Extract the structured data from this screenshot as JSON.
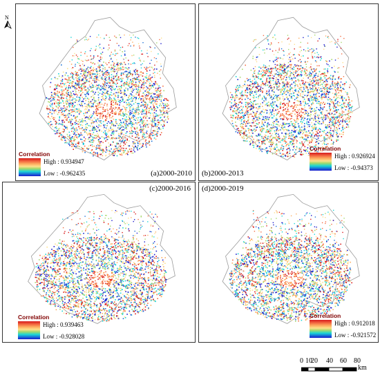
{
  "north_label": "N",
  "panels": [
    {
      "title": "(a)2000-2010",
      "legend_title": "Correlation",
      "high": "High : 0.934947",
      "low": "Low : -0.962435"
    },
    {
      "title": "(b)2000-2013",
      "legend_title": "Correlation",
      "high": "High : 0.926924",
      "low": "Low : -0.94373"
    },
    {
      "title": "(c)2000-2016",
      "legend_title": "Correlation",
      "high": "High : 0.939463",
      "low": "Low : -0.928028"
    },
    {
      "title": "(d)2000-2019",
      "legend_title": "Correlation",
      "high": "High : 0.912018",
      "low": "Low : -0.921572"
    }
  ],
  "scale": {
    "ticks": [
      "0",
      "10",
      "20",
      "40",
      "60",
      "80"
    ],
    "unit": "km"
  },
  "colors": {
    "high": "#d7191c",
    "mid": "#fee08b",
    "green": "#a6d96a",
    "cyan": "#1ad6d6",
    "low": "#1a1acc"
  }
}
